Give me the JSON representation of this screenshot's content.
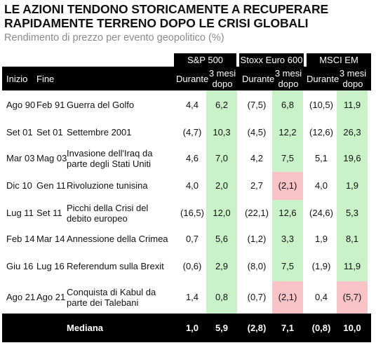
{
  "title": "LE AZIONI TENDONO STORICAMENTE A RECUPERARE RAPIDAMENTE TERRENO DOPO LE CRISI GLOBALI",
  "subtitle": "Rendimento di prezzo per evento geopolitico (%)",
  "columns": {
    "inizio": "Inizio",
    "fine": "Fine",
    "durante": "Durante",
    "tre_mesi": "3 mesi dopo",
    "groups": [
      "S&P 500",
      "Stoxx Euro 600",
      "MSCI EM"
    ]
  },
  "rows": [
    {
      "inizio": "Ago 90",
      "fine": "Feb 91",
      "evento": "Guerra del Golfo",
      "sp_dur": "4,4",
      "sp_3m": "6,2",
      "sx_dur": "(7,5)",
      "sx_3m": "6,8",
      "em_dur": "(10,5)",
      "em_3m": "11,9"
    },
    {
      "inizio": "Set 01",
      "fine": "Set 01",
      "evento": "Settembre 2001",
      "sp_dur": "(4,7)",
      "sp_3m": "10,3",
      "sx_dur": "(4,5)",
      "sx_3m": "12,2",
      "em_dur": "(12,6)",
      "em_3m": "26,3"
    },
    {
      "inizio": "Mar 03",
      "fine": "Mag 03",
      "evento": "Invasione dell'Iraq da parte degli Stati Uniti",
      "sp_dur": "4,6",
      "sp_3m": "7,0",
      "sx_dur": "4,2",
      "sx_3m": "7,5",
      "em_dur": "5,1",
      "em_3m": "19,6"
    },
    {
      "inizio": "Dic 10",
      "fine": "Gen 11",
      "evento": "Rivoluzione tunisina",
      "sp_dur": "4,0",
      "sp_3m": "2,0",
      "sx_dur": "2,7",
      "sx_3m": "(2,1)",
      "em_dur": "4,0",
      "em_3m": "1,9"
    },
    {
      "inizio": "Lug 11",
      "fine": "Set 11",
      "evento": "Picchi della Crisi del debito europeo",
      "sp_dur": "(16,5)",
      "sp_3m": "12,0",
      "sx_dur": "(22,1)",
      "sx_3m": "12,6",
      "em_dur": "(24,6)",
      "em_3m": "5,3"
    },
    {
      "inizio": "Feb 14",
      "fine": "Mar 14",
      "evento": "Annessione della Crimea",
      "sp_dur": "0,7",
      "sp_3m": "5,6",
      "sx_dur": "(1,2)",
      "sx_3m": "3,3",
      "em_dur": "1,9",
      "em_3m": "8,1"
    },
    {
      "inizio": "Giu 16",
      "fine": "Lug 16",
      "evento": "Referendum sulla Brexit",
      "sp_dur": "(0,6)",
      "sp_3m": "2,9",
      "sx_dur": "(8,0)",
      "sx_3m": "7,5",
      "em_dur": "(1,9)",
      "em_3m": "11,9"
    },
    {
      "inizio": "Ago 21",
      "fine": "Ago 21",
      "evento": "Conquista di Kabul da parte dei Talebani",
      "sp_dur": "1,4",
      "sp_3m": "0,8",
      "sx_dur": "(0,7)",
      "sx_3m": "(2,1)",
      "em_dur": "0,4",
      "em_3m": "(5,7)"
    }
  ],
  "mediana": {
    "label": "Mediana",
    "sp_dur": "1,0",
    "sp_3m": "5,9",
    "sx_dur": "(2,8)",
    "sx_3m": "7,1",
    "em_dur": "(0,8)",
    "em_3m": "10,0"
  },
  "colors": {
    "positive_highlight": "#c9f2c9",
    "negative_highlight": "#f9c3c8",
    "header_bg": "#000000"
  }
}
